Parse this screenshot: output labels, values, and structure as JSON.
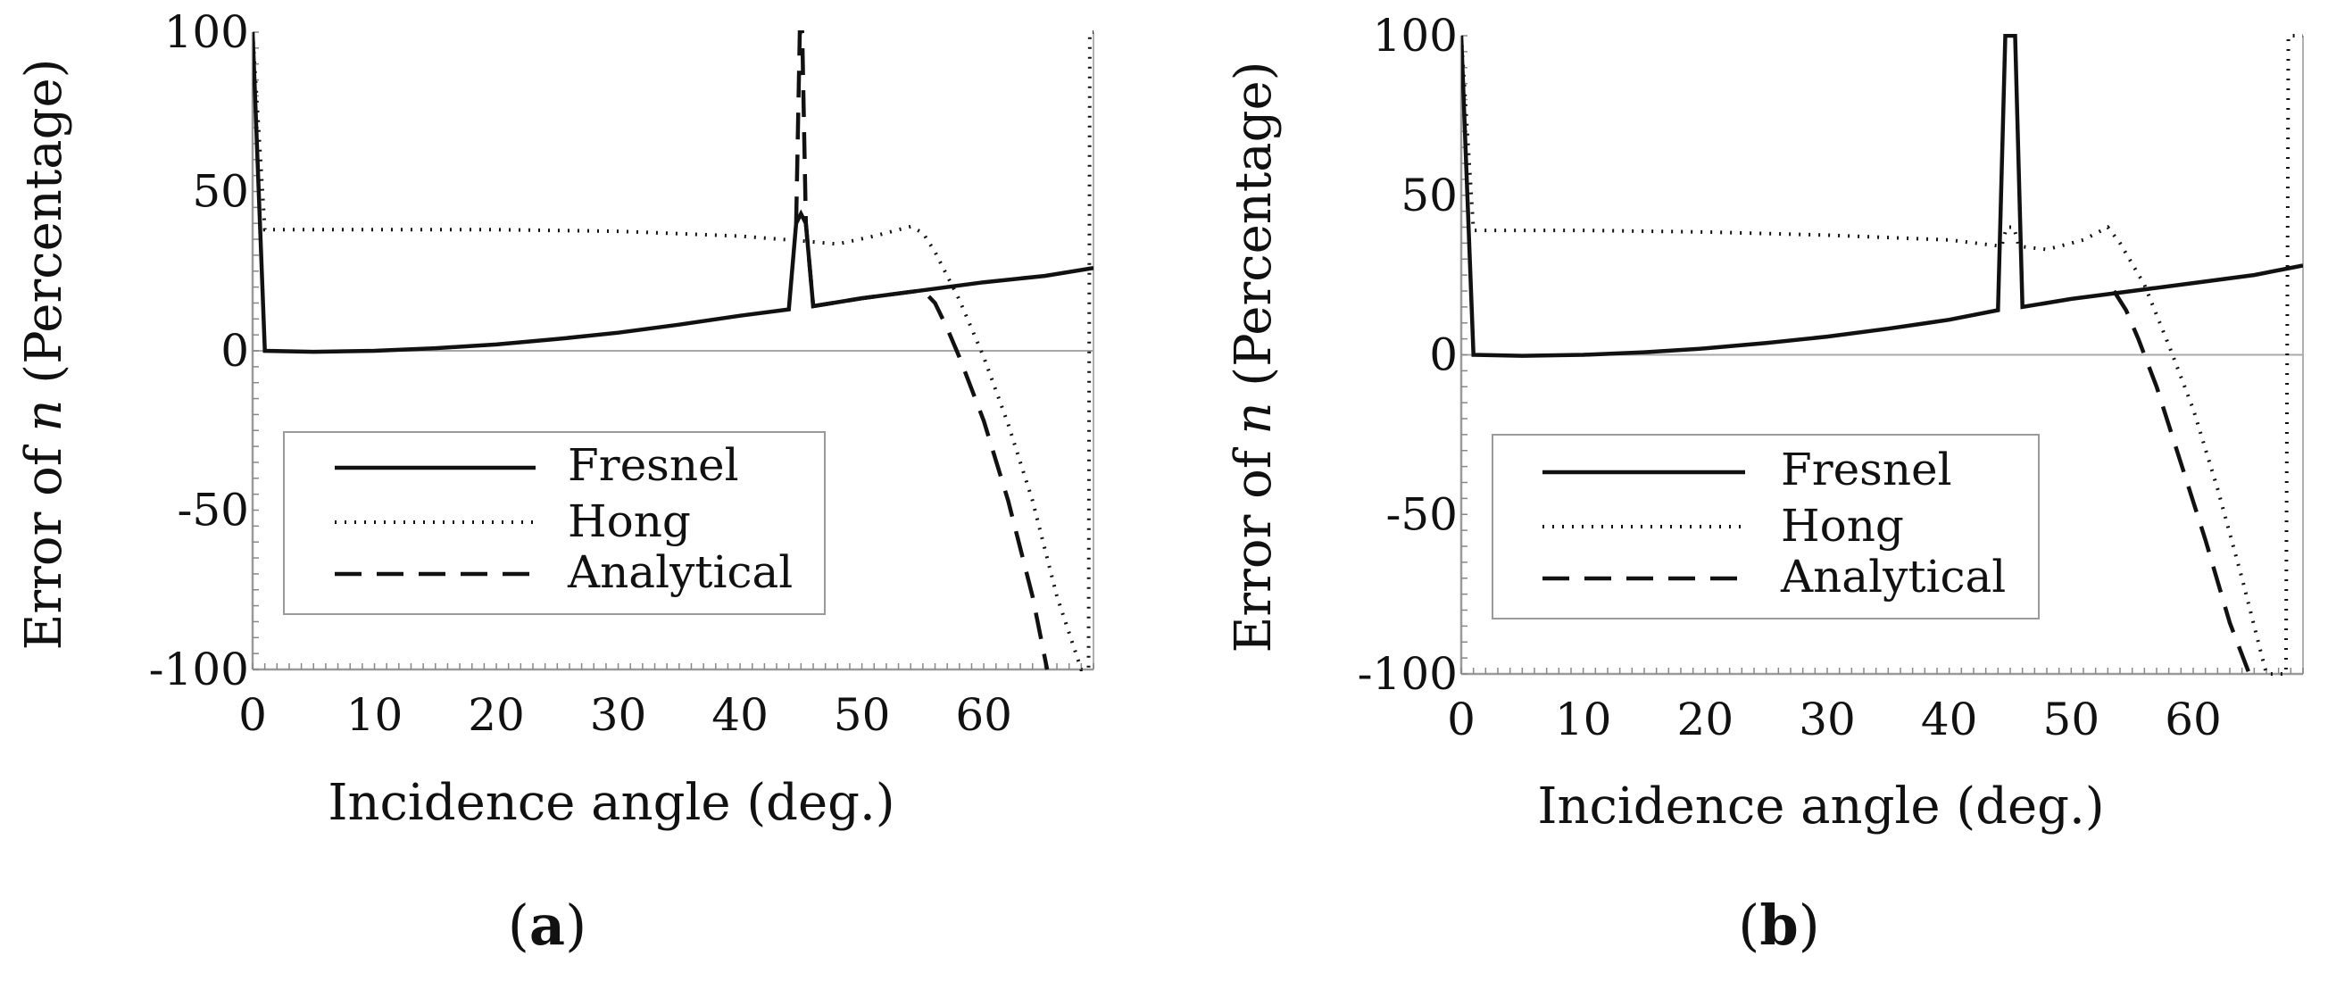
{
  "chart_data": [
    {
      "type": "line",
      "panel_label": "a",
      "xlabel": "Incidence angle (deg.)",
      "ylabel_prefix": "Error of ",
      "ylabel_var": "n",
      "ylabel_suffix": " (Percentage)",
      "xlim": [
        0,
        69
      ],
      "ylim": [
        -100,
        100
      ],
      "xticks": [
        0,
        10,
        20,
        30,
        40,
        50,
        60
      ],
      "yticks": [
        100,
        50,
        0,
        -50,
        -100
      ],
      "ytick_labels": [
        "100",
        "50",
        "0",
        "-50",
        "-100"
      ],
      "zero_line": true,
      "legend_position": "lower-left",
      "series": [
        {
          "name": "Fresnel",
          "style": "solid",
          "x": [
            0,
            1,
            5,
            10,
            15,
            20,
            25,
            30,
            35,
            40,
            44,
            44.6,
            45,
            45.4,
            46,
            50,
            55,
            60,
            65,
            69
          ],
          "y": [
            100,
            0,
            -0.3,
            0,
            0.8,
            2,
            3.7,
            5.7,
            8.2,
            11,
            13,
            40,
            43,
            40,
            14,
            16.5,
            19,
            21.5,
            23.5,
            26
          ]
        },
        {
          "name": "Hong",
          "style": "dotted",
          "x": [
            0,
            1,
            10,
            20,
            30,
            40,
            45,
            48,
            51,
            54,
            55,
            56,
            58,
            60,
            62,
            64,
            66,
            68,
            68.6,
            68.7,
            69
          ],
          "y": [
            100,
            38,
            38,
            38,
            37.5,
            36,
            34.5,
            33.5,
            36,
            39,
            37,
            31,
            16,
            -2,
            -23,
            -47,
            -77,
            -100,
            -100,
            100,
            100
          ]
        },
        {
          "name": "Analytical",
          "style": "dashed",
          "x": [
            44.6,
            44.9,
            45,
            45.1,
            45.4,
            46,
            50,
            55,
            56,
            57,
            58,
            60,
            62,
            64,
            65.2
          ],
          "y": [
            40,
            100,
            100,
            100,
            40,
            14,
            16.5,
            19,
            15,
            7,
            -2,
            -22,
            -47,
            -77,
            -100
          ]
        }
      ]
    },
    {
      "type": "line",
      "panel_label": "b",
      "xlabel": "Incidence angle (deg.)",
      "ylabel_prefix": "Error of ",
      "ylabel_var": "n",
      "ylabel_suffix": " (Percentage)",
      "xlim": [
        0,
        69
      ],
      "ylim": [
        -100,
        100
      ],
      "xticks": [
        0,
        10,
        20,
        30,
        40,
        50,
        60
      ],
      "yticks": [
        100,
        50,
        0,
        -50,
        -100
      ],
      "ytick_labels": [
        "100",
        "50",
        "0",
        "-50",
        "-100"
      ],
      "zero_line": true,
      "legend_position": "lower-left",
      "series": [
        {
          "name": "Fresnel",
          "style": "solid",
          "x": [
            0,
            1,
            5,
            10,
            15,
            20,
            25,
            30,
            35,
            40,
            44,
            44.6,
            45,
            45.4,
            46,
            50,
            55,
            60,
            65,
            69
          ],
          "y": [
            100,
            0,
            -0.3,
            0,
            0.8,
            2,
            3.7,
            5.7,
            8.2,
            11,
            14,
            100,
            100,
            100,
            15,
            17.5,
            20,
            22.5,
            25,
            28
          ]
        },
        {
          "name": "Hong",
          "style": "dotted",
          "x": [
            0,
            1,
            10,
            20,
            30,
            40,
            44.3,
            44.7,
            45,
            45.3,
            45.7,
            48,
            51,
            53,
            54,
            56,
            58,
            60,
            62,
            64,
            66,
            66.8,
            67.6,
            67.8,
            69
          ],
          "y": [
            100,
            39,
            39,
            38.5,
            37.5,
            36,
            34,
            40,
            40,
            40,
            34,
            33,
            36,
            40,
            35,
            22,
            3,
            -17,
            -42,
            -70,
            -100,
            -100,
            -100,
            100,
            100
          ]
        },
        {
          "name": "Analytical",
          "style": "dashed",
          "x": [
            53.5,
            54.5,
            55.5,
            57,
            59,
            61,
            63,
            64.6
          ],
          "y": [
            20,
            14,
            5,
            -10,
            -34,
            -58,
            -84,
            -100
          ]
        }
      ]
    }
  ]
}
